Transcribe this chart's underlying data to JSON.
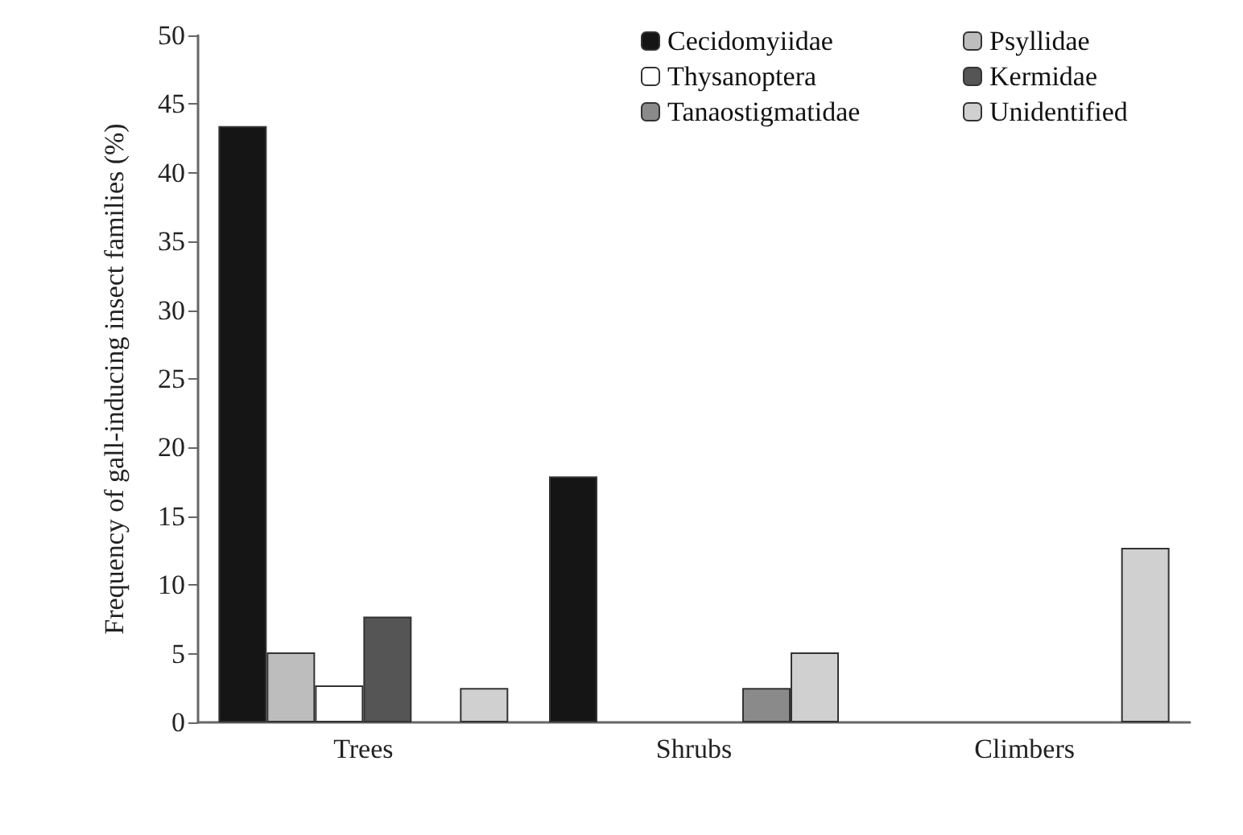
{
  "chart_data": {
    "type": "bar",
    "ylabel": "Frequency of gall-inducing insect families (%)",
    "categories": [
      "Trees",
      "Shrubs",
      "Climbers"
    ],
    "ylim": [
      0,
      50
    ],
    "yticks": [
      0,
      5,
      10,
      15,
      20,
      25,
      30,
      35,
      40,
      45,
      50
    ],
    "grid": false,
    "legend": "top right",
    "series": [
      {
        "name": "Cecidomyiidae",
        "color": "#151515",
        "values": [
          43.4,
          17.9,
          0
        ]
      },
      {
        "name": "Psyllidae",
        "color": "#bdbdbd",
        "values": [
          5.1,
          0,
          0
        ]
      },
      {
        "name": "Thysanoptera",
        "color": "#ffffff",
        "values": [
          2.7,
          0,
          0
        ]
      },
      {
        "name": "Kermidae",
        "color": "#555555",
        "values": [
          7.7,
          0,
          0
        ]
      },
      {
        "name": "Tanaostigmatidae",
        "color": "#8a8a8a",
        "values": [
          0,
          2.5,
          0
        ]
      },
      {
        "name": "Unidentified",
        "color": "#d0d0d0",
        "values": [
          2.5,
          5.1,
          12.7
        ]
      }
    ]
  }
}
